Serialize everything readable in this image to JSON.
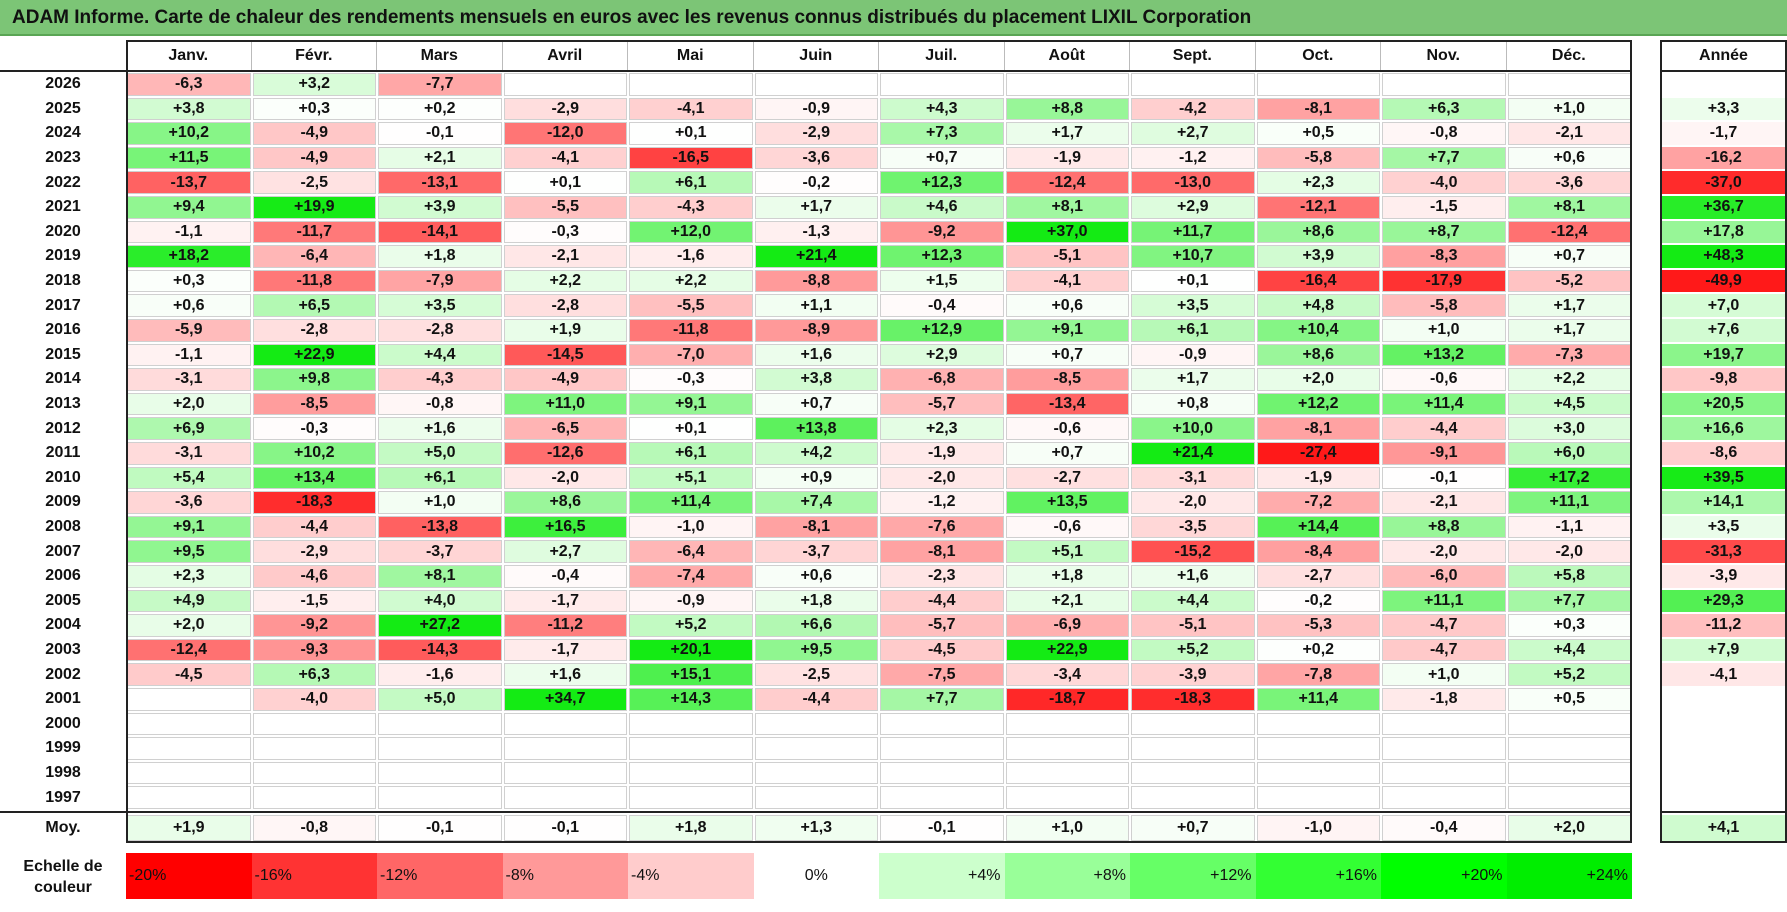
{
  "title": "ADAM Informe. Carte de chaleur des rendements mensuels en euros avec les revenus connus distribués du placement LIXIL Corporation",
  "chart_data": {
    "type": "heatmap",
    "months": [
      "Janv.",
      "Févr.",
      "Mars",
      "Avril",
      "Mai",
      "Juin",
      "Juil.",
      "Août",
      "Sept.",
      "Oct.",
      "Nov.",
      "Déc."
    ],
    "annual_label": "Année",
    "average_label": "Moy.",
    "rows": [
      {
        "year": "2026",
        "values": [
          "-6,3",
          "+3,2",
          "-7,7",
          "",
          "",
          "",
          "",
          "",
          "",
          "",
          "",
          ""
        ],
        "annual": ""
      },
      {
        "year": "2025",
        "values": [
          "+3,8",
          "+0,3",
          "+0,2",
          "-2,9",
          "-4,1",
          "-0,9",
          "+4,3",
          "+8,8",
          "-4,2",
          "-8,1",
          "+6,3",
          "+1,0"
        ],
        "annual": "+3,3"
      },
      {
        "year": "2024",
        "values": [
          "+10,2",
          "-4,9",
          "-0,1",
          "-12,0",
          "+0,1",
          "-2,9",
          "+7,3",
          "+1,7",
          "+2,7",
          "+0,5",
          "-0,8",
          "-2,1"
        ],
        "annual": "-1,7"
      },
      {
        "year": "2023",
        "values": [
          "+11,5",
          "-4,9",
          "+2,1",
          "-4,1",
          "-16,5",
          "-3,6",
          "+0,7",
          "-1,9",
          "-1,2",
          "-5,8",
          "+7,7",
          "+0,6"
        ],
        "annual": "-16,2"
      },
      {
        "year": "2022",
        "values": [
          "-13,7",
          "-2,5",
          "-13,1",
          "+0,1",
          "+6,1",
          "-0,2",
          "+12,3",
          "-12,4",
          "-13,0",
          "+2,3",
          "-4,0",
          "-3,6"
        ],
        "annual": "-37,0"
      },
      {
        "year": "2021",
        "values": [
          "+9,4",
          "+19,9",
          "+3,9",
          "-5,5",
          "-4,3",
          "+1,7",
          "+4,6",
          "+8,1",
          "+2,9",
          "-12,1",
          "-1,5",
          "+8,1"
        ],
        "annual": "+36,7"
      },
      {
        "year": "2020",
        "values": [
          "-1,1",
          "-11,7",
          "-14,1",
          "-0,3",
          "+12,0",
          "-1,3",
          "-9,2",
          "+37,0",
          "+11,7",
          "+8,6",
          "+8,7",
          "-12,4"
        ],
        "annual": "+17,8"
      },
      {
        "year": "2019",
        "values": [
          "+18,2",
          "-6,4",
          "+1,8",
          "-2,1",
          "-1,6",
          "+21,4",
          "+12,3",
          "-5,1",
          "+10,7",
          "+3,9",
          "-8,3",
          "+0,7"
        ],
        "annual": "+48,3"
      },
      {
        "year": "2018",
        "values": [
          "+0,3",
          "-11,8",
          "-7,9",
          "+2,2",
          "+2,2",
          "-8,8",
          "+1,5",
          "-4,1",
          "+0,1",
          "-16,4",
          "-17,9",
          "-5,2"
        ],
        "annual": "-49,9"
      },
      {
        "year": "2017",
        "values": [
          "+0,6",
          "+6,5",
          "+3,5",
          "-2,8",
          "-5,5",
          "+1,1",
          "-0,4",
          "+0,6",
          "+3,5",
          "+4,8",
          "-5,8",
          "+1,7"
        ],
        "annual": "+7,0"
      },
      {
        "year": "2016",
        "values": [
          "-5,9",
          "-2,8",
          "-2,8",
          "+1,9",
          "-11,8",
          "-8,9",
          "+12,9",
          "+9,1",
          "+6,1",
          "+10,4",
          "+1,0",
          "+1,7"
        ],
        "annual": "+7,6"
      },
      {
        "year": "2015",
        "values": [
          "-1,1",
          "+22,9",
          "+4,4",
          "-14,5",
          "-7,0",
          "+1,6",
          "+2,9",
          "+0,7",
          "-0,9",
          "+8,6",
          "+13,2",
          "-7,3"
        ],
        "annual": "+19,7"
      },
      {
        "year": "2014",
        "values": [
          "-3,1",
          "+9,8",
          "-4,3",
          "-4,9",
          "-0,3",
          "+3,8",
          "-6,8",
          "-8,5",
          "+1,7",
          "+2,0",
          "-0,6",
          "+2,2"
        ],
        "annual": "-9,8"
      },
      {
        "year": "2013",
        "values": [
          "+2,0",
          "-8,5",
          "-0,8",
          "+11,0",
          "+9,1",
          "+0,7",
          "-5,7",
          "-13,4",
          "+0,8",
          "+12,2",
          "+11,4",
          "+4,5"
        ],
        "annual": "+20,5"
      },
      {
        "year": "2012",
        "values": [
          "+6,9",
          "-0,3",
          "+1,6",
          "-6,5",
          "+0,1",
          "+13,8",
          "+2,3",
          "-0,6",
          "+10,0",
          "-8,1",
          "-4,4",
          "+3,0"
        ],
        "annual": "+16,6"
      },
      {
        "year": "2011",
        "values": [
          "-3,1",
          "+10,2",
          "+5,0",
          "-12,6",
          "+6,1",
          "+4,2",
          "-1,9",
          "+0,7",
          "+21,4",
          "-27,4",
          "-9,1",
          "+6,0"
        ],
        "annual": "-8,6"
      },
      {
        "year": "2010",
        "values": [
          "+5,4",
          "+13,4",
          "+6,1",
          "-2,0",
          "+5,1",
          "+0,9",
          "-2,0",
          "-2,7",
          "-3,1",
          "-1,9",
          "-0,1",
          "+17,2"
        ],
        "annual": "+39,5"
      },
      {
        "year": "2009",
        "values": [
          "-3,6",
          "-18,3",
          "+1,0",
          "+8,6",
          "+11,4",
          "+7,4",
          "-1,2",
          "+13,5",
          "-2,0",
          "-7,2",
          "-2,1",
          "+11,1"
        ],
        "annual": "+14,1"
      },
      {
        "year": "2008",
        "values": [
          "+9,1",
          "-4,4",
          "-13,8",
          "+16,5",
          "-1,0",
          "-8,1",
          "-7,6",
          "-0,6",
          "-3,5",
          "+14,4",
          "+8,8",
          "-1,1"
        ],
        "annual": "+3,5"
      },
      {
        "year": "2007",
        "values": [
          "+9,5",
          "-2,9",
          "-3,7",
          "+2,7",
          "-6,4",
          "-3,7",
          "-8,1",
          "+5,1",
          "-15,2",
          "-8,4",
          "-2,0",
          "-2,0"
        ],
        "annual": "-31,3"
      },
      {
        "year": "2006",
        "values": [
          "+2,3",
          "-4,6",
          "+8,1",
          "-0,4",
          "-7,4",
          "+0,6",
          "-2,3",
          "+1,8",
          "+1,6",
          "-2,7",
          "-6,0",
          "+5,8"
        ],
        "annual": "-3,9"
      },
      {
        "year": "2005",
        "values": [
          "+4,9",
          "-1,5",
          "+4,0",
          "-1,7",
          "-0,9",
          "+1,8",
          "-4,4",
          "+2,1",
          "+4,4",
          "-0,2",
          "+11,1",
          "+7,7"
        ],
        "annual": "+29,3"
      },
      {
        "year": "2004",
        "values": [
          "+2,0",
          "-9,2",
          "+27,2",
          "-11,2",
          "+5,2",
          "+6,6",
          "-5,7",
          "-6,9",
          "-5,1",
          "-5,3",
          "-4,7",
          "+0,3"
        ],
        "annual": "-11,2"
      },
      {
        "year": "2003",
        "values": [
          "-12,4",
          "-9,3",
          "-14,3",
          "-1,7",
          "+20,1",
          "+9,5",
          "-4,5",
          "+22,9",
          "+5,2",
          "+0,2",
          "-4,7",
          "+4,4"
        ],
        "annual": "+7,9"
      },
      {
        "year": "2002",
        "values": [
          "-4,5",
          "+6,3",
          "-1,6",
          "+1,6",
          "+15,1",
          "-2,5",
          "-7,5",
          "-3,4",
          "-3,9",
          "-7,8",
          "+1,0",
          "+5,2"
        ],
        "annual": "-4,1"
      },
      {
        "year": "2001",
        "values": [
          "",
          "-4,0",
          "+5,0",
          "+34,7",
          "+14,3",
          "-4,4",
          "+7,7",
          "-18,7",
          "-18,3",
          "+11,4",
          "-1,8",
          "+0,5"
        ],
        "annual": ""
      },
      {
        "year": "2000",
        "values": [
          "",
          "",
          "",
          "",
          "",
          "",
          "",
          "",
          "",
          "",
          "",
          ""
        ],
        "annual": ""
      },
      {
        "year": "1999",
        "values": [
          "",
          "",
          "",
          "",
          "",
          "",
          "",
          "",
          "",
          "",
          "",
          ""
        ],
        "annual": ""
      },
      {
        "year": "1998",
        "values": [
          "",
          "",
          "",
          "",
          "",
          "",
          "",
          "",
          "",
          "",
          "",
          ""
        ],
        "annual": ""
      },
      {
        "year": "1997",
        "values": [
          "",
          "",
          "",
          "",
          "",
          "",
          "",
          "",
          "",
          "",
          "",
          ""
        ],
        "annual": ""
      }
    ],
    "averages": [
      "+1,9",
      "-0,8",
      "-0,1",
      "-0,1",
      "+1,8",
      "+1,3",
      "-0,1",
      "+1,0",
      "+0,7",
      "-1,0",
      "-0,4",
      "+2,0"
    ],
    "average_annual": "+4,1",
    "scale": {
      "label_line1": "Echelle de",
      "label_line2": "couleur",
      "steps": [
        {
          "label": "-20%",
          "color": "#ff0000"
        },
        {
          "label": "-16%",
          "color": "#ff3333"
        },
        {
          "label": "-12%",
          "color": "#ff6666"
        },
        {
          "label": "-8%",
          "color": "#ff9999"
        },
        {
          "label": "-4%",
          "color": "#ffcccc"
        },
        {
          "label": "0%",
          "color": "#ffffff"
        },
        {
          "label": "+4%",
          "color": "#ccffcc"
        },
        {
          "label": "+8%",
          "color": "#99ff99"
        },
        {
          "label": "+12%",
          "color": "#66ff66"
        },
        {
          "label": "+16%",
          "color": "#33ff33"
        },
        {
          "label": "+20%",
          "color": "#00ff00"
        },
        {
          "label": "+24%",
          "color": "#00ee00"
        }
      ]
    }
  }
}
